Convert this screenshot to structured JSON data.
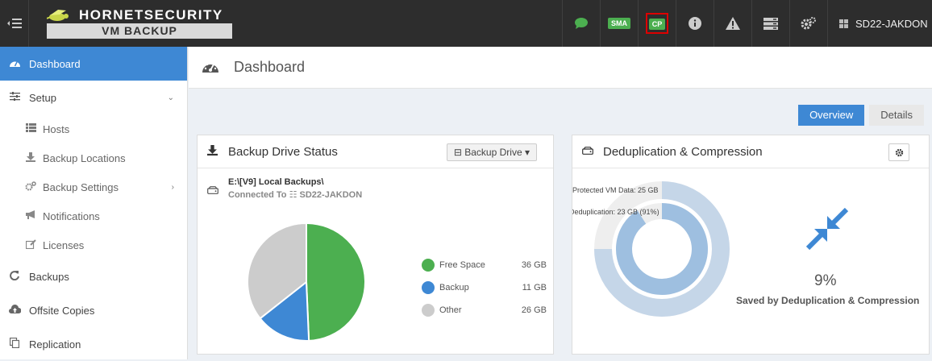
{
  "topbar": {
    "brand_top": "HORNETSECURITY",
    "brand_bottom": "VM BACKUP",
    "sma_label": "SMA",
    "cp_label": "CP",
    "host_name": "SD22-JAKDON",
    "icons": [
      "menu-toggle-icon",
      "chat-icon",
      "info-icon",
      "warning-icon",
      "server-icon",
      "gears-icon",
      "windows-icon"
    ]
  },
  "sidebar": {
    "dashboard": "Dashboard",
    "setup": "Setup",
    "hosts": "Hosts",
    "backup_locations": "Backup Locations",
    "backup_settings": "Backup Settings",
    "notifications": "Notifications",
    "licenses": "Licenses",
    "backups": "Backups",
    "offsite_copies": "Offsite Copies",
    "replication": "Replication"
  },
  "main": {
    "title": "Dashboard",
    "tabs": {
      "overview": "Overview",
      "details": "Details"
    }
  },
  "backup_panel": {
    "title": "Backup Drive Status",
    "button": "Backup Drive",
    "drive_path": "E:\\[V9] Local Backups\\",
    "connected_prefix": "Connected To",
    "connected_host": "SD22-JAKDON",
    "legend": [
      {
        "name": "Free Space",
        "value": "36 GB",
        "color": "#4caf50"
      },
      {
        "name": "Backup",
        "value": "11 GB",
        "color": "#3e88d4"
      },
      {
        "name": "Other",
        "value": "26 GB",
        "color": "#cccccc"
      }
    ]
  },
  "dedup_panel": {
    "title": "Deduplication & Compression",
    "protected_label": "Protected VM Data: 25 GB",
    "dedup_label": "Deduplication: 23 GB (91%)",
    "percent": "9%",
    "saved_label": "Saved by Deduplication & Compression"
  },
  "chart_data": [
    {
      "type": "pie",
      "categories": [
        "Free Space",
        "Backup",
        "Other"
      ],
      "values": [
        36,
        11,
        26
      ],
      "unit": "GB"
    },
    {
      "type": "radial",
      "series": [
        {
          "name": "Protected VM Data",
          "value": 25,
          "fraction": 0.75
        },
        {
          "name": "Deduplication",
          "value": 23,
          "fraction": 0.91
        }
      ],
      "unit": "GB"
    }
  ]
}
